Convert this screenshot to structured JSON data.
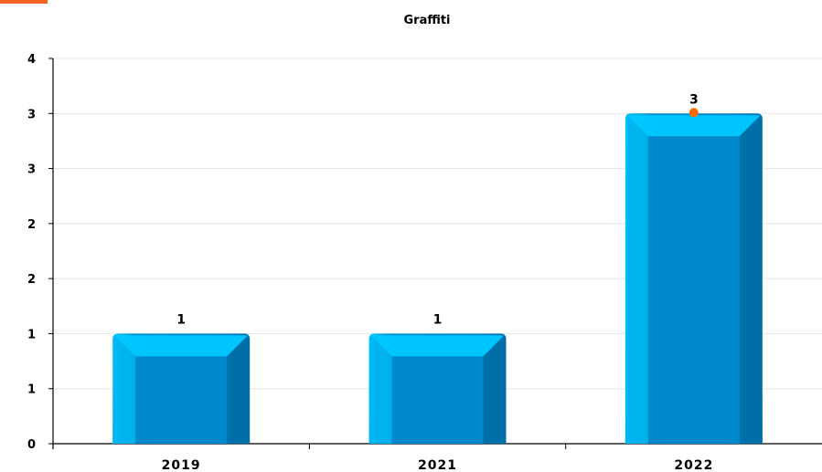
{
  "accent_color": "#f26522",
  "chart_data": {
    "type": "bar",
    "title": "Graffiti",
    "xlabel": "",
    "ylabel": "",
    "categories": [
      "2019",
      "2021",
      "2022"
    ],
    "values": [
      1,
      1,
      3
    ],
    "data_labels": [
      "1",
      "1",
      "3"
    ],
    "ylim": [
      0,
      3.5
    ],
    "yticks": [
      0,
      0.5,
      1,
      1.5,
      2,
      2.5,
      3,
      3.5
    ],
    "ytick_labels": [
      "0",
      "1",
      "1",
      "2",
      "2",
      "3",
      "3",
      "4"
    ],
    "grid": true,
    "legend": "none",
    "bar_color": "#0088cc",
    "bar_highlight_color": "#00c8ff",
    "marker_color": "#ff6a00",
    "marker_category": "2022"
  }
}
